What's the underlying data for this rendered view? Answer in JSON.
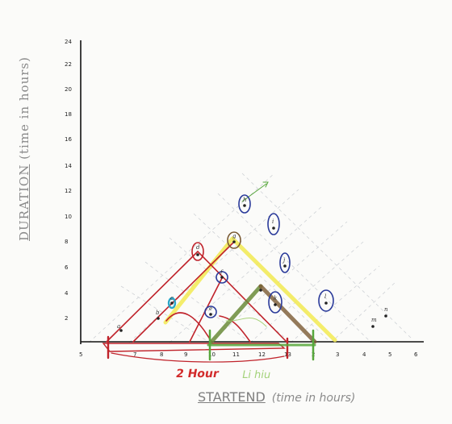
{
  "diagram": {
    "y_axis_title": {
      "part1": "DURATION",
      "part2": "(time in hours)"
    },
    "x_axis_title": {
      "start": "START",
      "end": "END",
      "suffix": "(time in hours)"
    },
    "y_ticks": [
      "2",
      "4",
      "6",
      "8",
      "10",
      "12",
      "14",
      "16",
      "18",
      "20",
      "22",
      "24"
    ],
    "x_ticks": [
      "5",
      "7",
      "8",
      "9",
      "10",
      "11",
      "12",
      "13",
      "2",
      "3",
      "4",
      "5",
      "6"
    ],
    "annotation_red": "2 Hour",
    "annotation_green": "Li hiu",
    "point_labels": [
      "a",
      "b",
      "c",
      "d",
      "e",
      "f",
      "g",
      "h",
      "i",
      "j",
      "k",
      "l",
      "m",
      "n"
    ],
    "colors": {
      "red": "#c0232b",
      "yellow": "#f2ea52",
      "green": "#57a73c",
      "brown": "#7a5a32",
      "blue": "#2a3a9a",
      "teal": "#2aa6c8",
      "axis": "#111111"
    }
  }
}
